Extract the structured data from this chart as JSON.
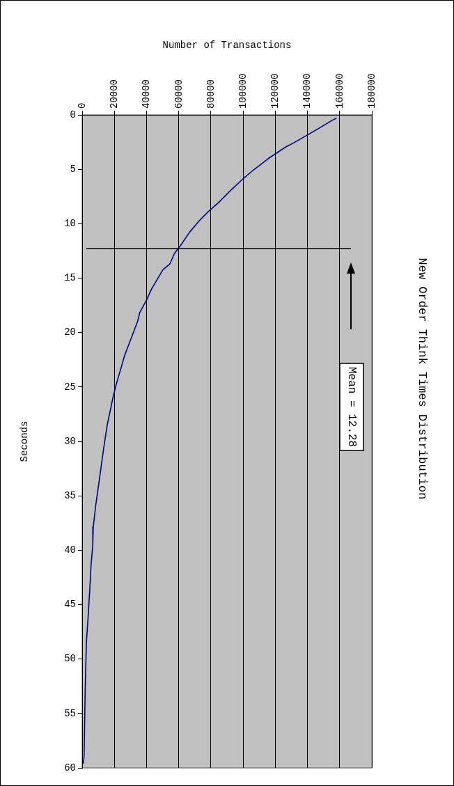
{
  "chart_data": {
    "type": "line",
    "title": "New Order Think Times Distribution",
    "xlabel": "Number of Transactions",
    "ylabel": "Seconds",
    "series": [
      {
        "color": "#000080",
        "x": [
          158000,
          155500,
          148300,
          140200,
          131700,
          126600,
          115800,
          106400,
          100000,
          92000,
          84800,
          79100,
          72600,
          66800,
          61700,
          57400,
          54500,
          50200,
          43000,
          40100,
          35800,
          34400,
          26400,
          21400,
          19200,
          15600,
          13400,
          10600,
          8400,
          6900,
          6600,
          5500,
          4800,
          3800,
          2600,
          1900,
          1200,
          700
        ],
        "values": [
          0.3,
          0.49,
          1.13,
          1.83,
          2.55,
          2.94,
          4.0,
          5.07,
          5.87,
          6.98,
          8.05,
          8.79,
          9.75,
          10.77,
          11.88,
          12.73,
          13.69,
          14.22,
          16.03,
          16.99,
          18.16,
          19.0,
          22.1,
          24.65,
          25.93,
          28.48,
          30.6,
          33.6,
          35.9,
          37.85,
          39.5,
          41.4,
          43.4,
          45.9,
          48.6,
          52.7,
          58.9,
          59.6
        ]
      }
    ],
    "xlim": [
      0,
      180000
    ],
    "xticks": [
      0,
      20000,
      40000,
      60000,
      80000,
      100000,
      120000,
      140000,
      160000,
      180000
    ],
    "ylim": [
      60,
      0
    ],
    "yticks": [
      0,
      5,
      10,
      15,
      20,
      25,
      30,
      35,
      40,
      45,
      50,
      55,
      60
    ],
    "ref_lines": [
      {
        "axis": "y",
        "value": 12.28,
        "label": "Mean = 12.28",
        "color": "#000000"
      }
    ],
    "grid": "x",
    "legend": false,
    "marker": "none",
    "line_style": "solid"
  }
}
